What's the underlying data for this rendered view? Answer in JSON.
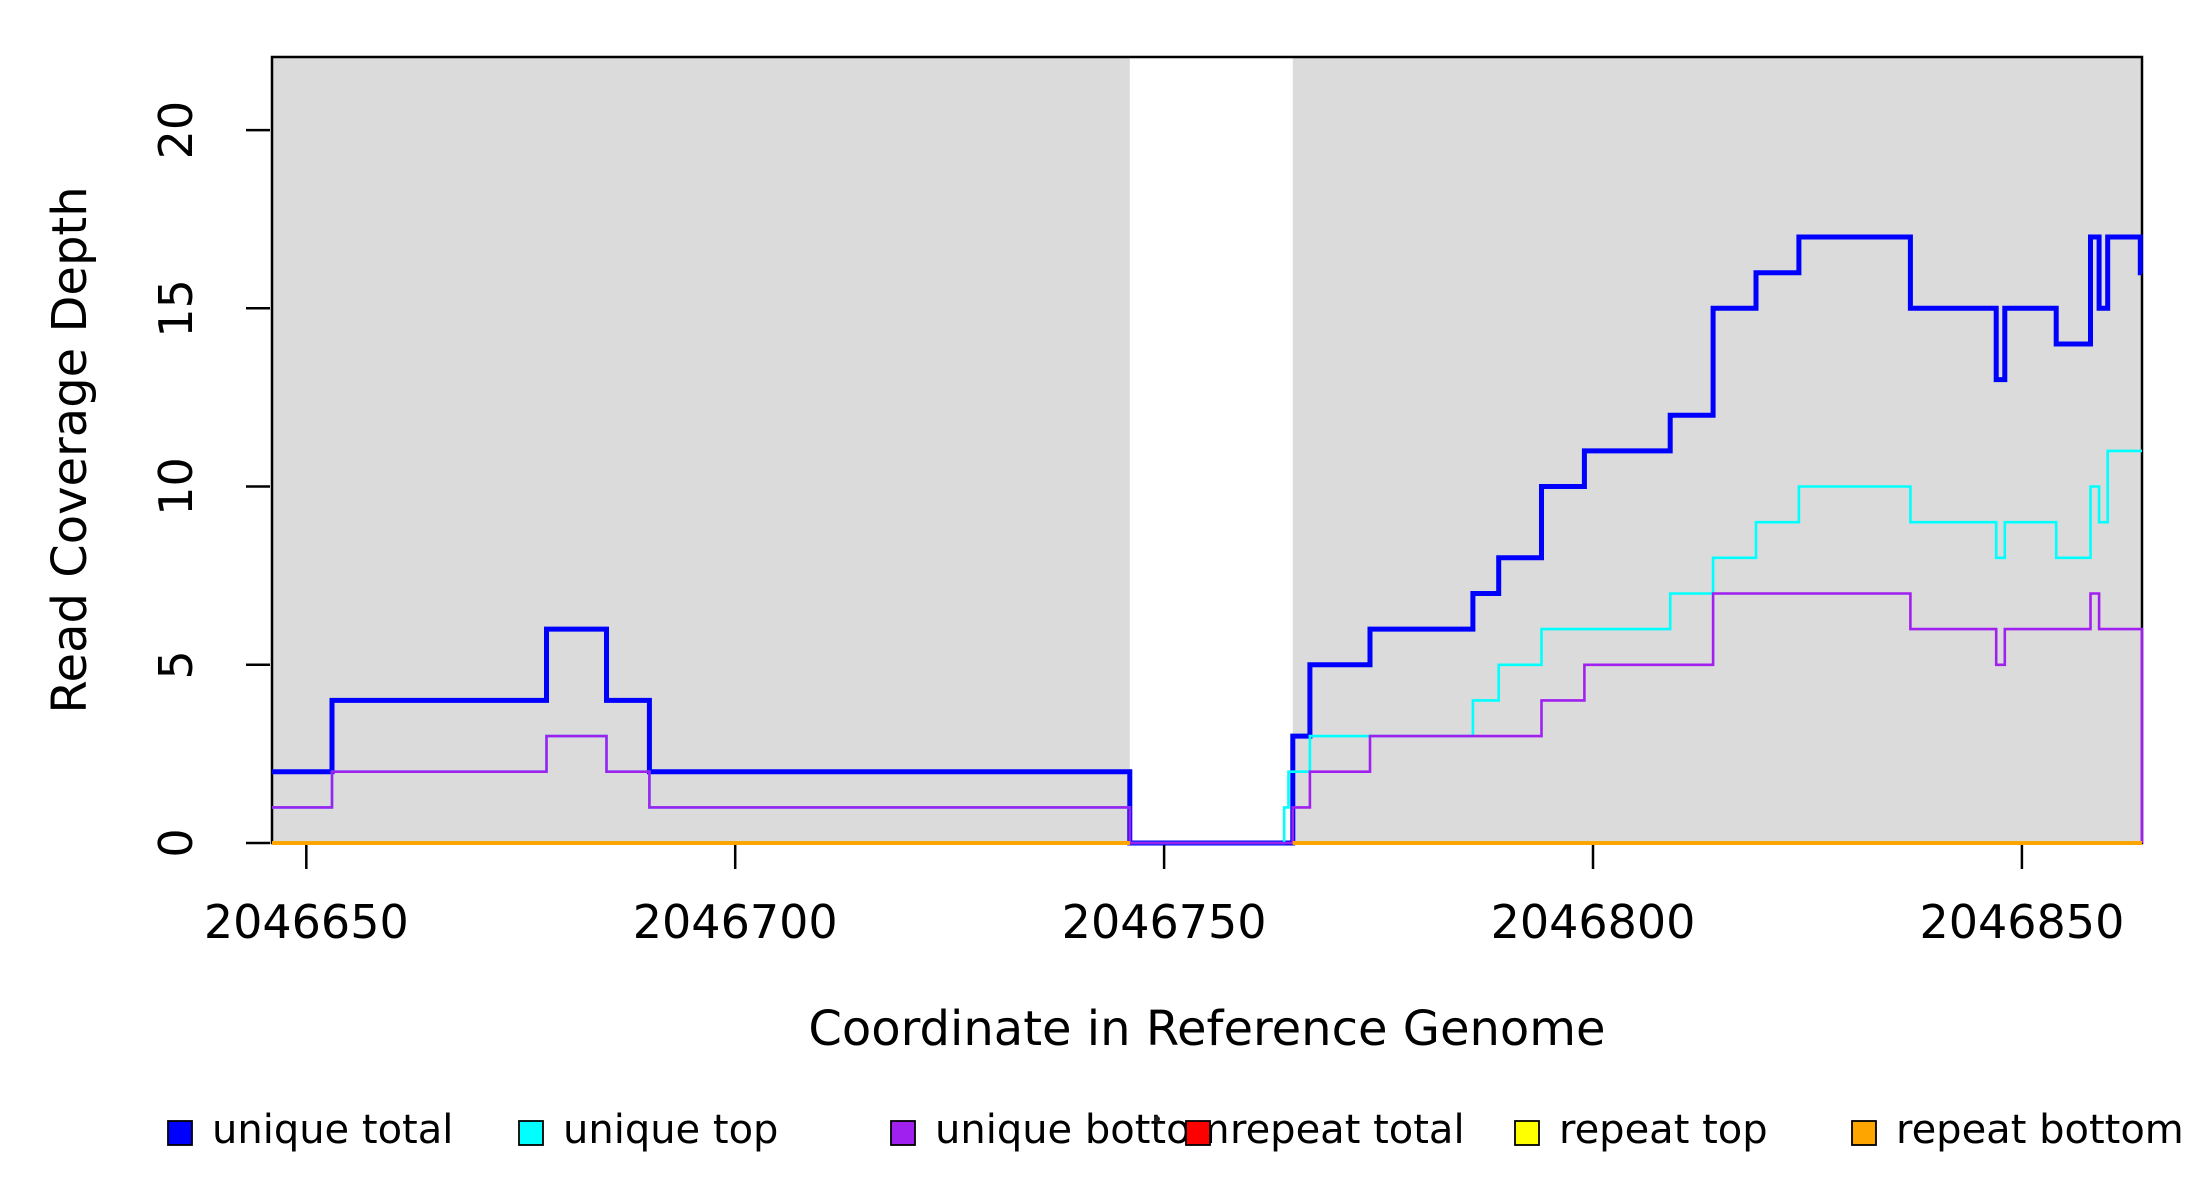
{
  "figure": {
    "background": "#FFFFFF",
    "panel_shade_color": "#DBDBDB",
    "border_color": "#000000",
    "stray_dot_color": "#222222"
  },
  "chart_data": {
    "type": "line",
    "subtype": "step-coverage",
    "title": "",
    "xlabel": "Coordinate in Reference Genome",
    "ylabel": "Read Coverage Depth",
    "xlim": [
      2046646,
      2046864
    ],
    "ylim": [
      0,
      22.05
    ],
    "grid": false,
    "legend_position": "bottom",
    "x_ticks": [
      2046650,
      2046700,
      2046750,
      2046800,
      2046850
    ],
    "y_ticks": [
      0,
      5,
      10,
      15,
      20
    ],
    "shaded_regions": [
      {
        "from": 2046646,
        "to": 2046746
      },
      {
        "from": 2046765,
        "to": 2046864
      }
    ],
    "unshaded_gap": {
      "from": 2046746,
      "to": 2046765
    },
    "series": [
      {
        "name": "unique total",
        "color": "#0000FF",
        "line_width": 5,
        "segments": [
          {
            "steps": [
              [
                2046646,
                2
              ],
              [
                2046653,
                4
              ],
              [
                2046678,
                6
              ],
              [
                2046685,
                4
              ],
              [
                2046690,
                2
              ],
              [
                2046746,
                0
              ],
              [
                2046765,
                3
              ],
              [
                2046767,
                5
              ],
              [
                2046774,
                6
              ],
              [
                2046786,
                7
              ],
              [
                2046789,
                8
              ],
              [
                2046794,
                10
              ],
              [
                2046799,
                11
              ],
              [
                2046809,
                12
              ],
              [
                2046814,
                15
              ],
              [
                2046819,
                16
              ],
              [
                2046824,
                17
              ],
              [
                2046837,
                15
              ],
              [
                2046847,
                13
              ],
              [
                2046848,
                15
              ],
              [
                2046854,
                14
              ],
              [
                2046858,
                17
              ],
              [
                2046859,
                15
              ],
              [
                2046860,
                17
              ],
              [
                2046863.8,
                16
              ]
            ],
            "end": 2046864
          }
        ]
      },
      {
        "name": "unique top",
        "color": "#00FFFF",
        "line_width": 2.6,
        "segments": [
          {
            "steps": [
              [
                2046646,
                1
              ],
              [
                2046653,
                2
              ],
              [
                2046678,
                3
              ],
              [
                2046685,
                2
              ],
              [
                2046690,
                1
              ],
              [
                2046746,
                0
              ],
              [
                2046764,
                1
              ],
              [
                2046764.5,
                2
              ],
              [
                2046767,
                3
              ],
              [
                2046786,
                4
              ],
              [
                2046789,
                5
              ],
              [
                2046794,
                6
              ],
              [
                2046809,
                7
              ],
              [
                2046814,
                8
              ],
              [
                2046819,
                9
              ],
              [
                2046824,
                10
              ],
              [
                2046837,
                9
              ],
              [
                2046847,
                8
              ],
              [
                2046848,
                9
              ],
              [
                2046854,
                8
              ],
              [
                2046858,
                10
              ],
              [
                2046859,
                9
              ],
              [
                2046860,
                11
              ]
            ],
            "end": 2046864
          }
        ]
      },
      {
        "name": "unique bottom",
        "color": "#A020F0",
        "line_width": 2.6,
        "segments": [
          {
            "steps": [
              [
                2046646,
                1
              ],
              [
                2046653,
                2
              ],
              [
                2046678,
                3
              ],
              [
                2046685,
                2
              ],
              [
                2046690,
                1
              ],
              [
                2046746,
                0
              ],
              [
                2046765,
                1
              ],
              [
                2046767,
                2
              ],
              [
                2046774,
                3
              ],
              [
                2046794,
                4
              ],
              [
                2046799,
                5
              ],
              [
                2046814,
                7
              ],
              [
                2046837,
                6
              ],
              [
                2046847,
                5
              ],
              [
                2046848,
                6
              ],
              [
                2046858,
                7
              ],
              [
                2046859,
                6
              ]
            ],
            "end": 2046864,
            "end_value": 0
          }
        ]
      },
      {
        "name": "repeat total",
        "color": "#FF0000",
        "line_width": 2.6,
        "segments": [
          {
            "steps": [
              [
                2046646,
                0
              ]
            ],
            "end": 2046746
          },
          {
            "steps": [
              [
                2046765,
                0
              ]
            ],
            "end": 2046864
          }
        ]
      },
      {
        "name": "repeat top",
        "color": "#FFFF00",
        "line_width": 2.6,
        "segments": [
          {
            "steps": [
              [
                2046646,
                0
              ]
            ],
            "end": 2046746
          },
          {
            "steps": [
              [
                2046765,
                0
              ]
            ],
            "end": 2046864
          }
        ]
      },
      {
        "name": "repeat bottom",
        "color": "#FFA500",
        "line_width": 4,
        "segments": [
          {
            "steps": [
              [
                2046646,
                0
              ]
            ],
            "end": 2046746
          },
          {
            "steps": [
              [
                2046765,
                0
              ]
            ],
            "end": 2046864
          }
        ]
      }
    ],
    "legend": [
      {
        "label": "unique total",
        "color": "#0000FF"
      },
      {
        "label": "unique top",
        "color": "#00FFFF"
      },
      {
        "label": "unique bottom",
        "color": "#A020F0"
      },
      {
        "label": "repeat total",
        "color": "#FF0000"
      },
      {
        "label": "repeat top",
        "color": "#FFFF00"
      },
      {
        "label": "repeat bottom",
        "color": "#FFA500"
      }
    ]
  }
}
